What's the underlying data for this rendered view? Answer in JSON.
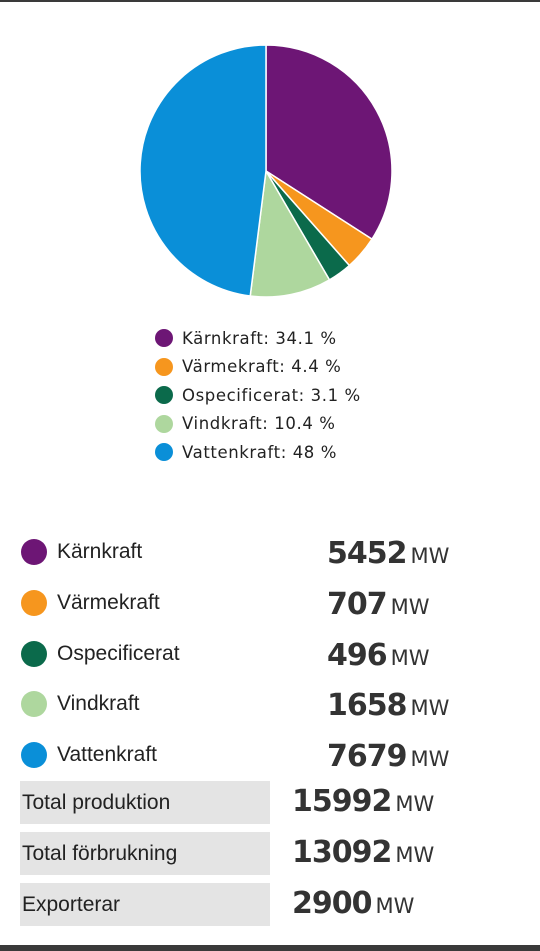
{
  "chart_data": {
    "type": "pie",
    "title": "",
    "categories": [
      "Kärnkraft",
      "Värmekraft",
      "Ospecificerat",
      "Vindkraft",
      "Vattenkraft"
    ],
    "values": [
      34.1,
      4.4,
      3.1,
      10.4,
      48
    ],
    "colors": [
      "#6d1675",
      "#f6961e",
      "#0b6a4b",
      "#aed79e",
      "#0a8fd8"
    ],
    "legend_position": "bottom",
    "legend": [
      {
        "label": "Kärnkraft: 34.1 %"
      },
      {
        "label": "Värmekraft: 4.4 %"
      },
      {
        "label": "Ospecificerat: 3.1 %"
      },
      {
        "label": "Vindkraft: 10.4 %"
      },
      {
        "label": "Vattenkraft: 48 %"
      }
    ]
  },
  "sources": [
    {
      "name": "Kärnkraft",
      "value": "5452",
      "unit": "MW",
      "color": "#6d1675"
    },
    {
      "name": "Värmekraft",
      "value": "707",
      "unit": "MW",
      "color": "#f6961e"
    },
    {
      "name": "Ospecificerat",
      "value": "496",
      "unit": "MW",
      "color": "#0b6a4b"
    },
    {
      "name": "Vindkraft",
      "value": "1658",
      "unit": "MW",
      "color": "#aed79e"
    },
    {
      "name": "Vattenkraft",
      "value": "7679",
      "unit": "MW",
      "color": "#0a8fd8"
    }
  ],
  "totals": [
    {
      "name": "Total produktion",
      "value": "15992",
      "unit": "MW"
    },
    {
      "name": "Total förbrukning",
      "value": "13092",
      "unit": "MW"
    },
    {
      "name": "Exporterar",
      "value": "2900",
      "unit": "MW"
    }
  ]
}
